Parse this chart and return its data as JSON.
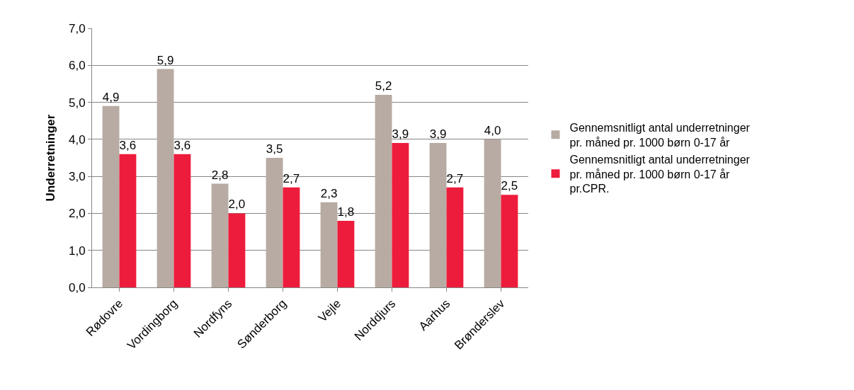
{
  "chart_data": {
    "type": "bar",
    "ylabel": "Underretninger",
    "categories": [
      "Rødovre",
      "Vordingborg",
      "Nordfyns",
      "Sønderborg",
      "Vejle",
      "Norddjurs",
      "Aarhus",
      "Brønderslev"
    ],
    "series": [
      {
        "name": "Gennemsnitligt antal underretninger pr. måned pr. 1000 børn 0-17 år",
        "color": "#b8aba3",
        "values": [
          4.9,
          5.9,
          2.8,
          3.5,
          2.3,
          5.2,
          3.9,
          4.0
        ],
        "value_labels": [
          "4,9",
          "5,9",
          "2,8",
          "3,5",
          "2,3",
          "5,2",
          "3,9",
          "4,0"
        ]
      },
      {
        "name": "Gennemsnitligt antal underretninger pr. måned pr. 1000 børn 0-17 år pr.CPR.",
        "color": "#ee1c3c",
        "values": [
          3.6,
          3.6,
          2.0,
          2.7,
          1.8,
          3.9,
          2.7,
          2.5
        ],
        "value_labels": [
          "3,6",
          "3,6",
          "2,0",
          "2,7",
          "1,8",
          "3,9",
          "2,7",
          "2,5"
        ]
      }
    ],
    "ylim": [
      0,
      7
    ],
    "yticks": [
      {
        "value": 0,
        "label": "0,0"
      },
      {
        "value": 1,
        "label": "1,0"
      },
      {
        "value": 2,
        "label": "2,0"
      },
      {
        "value": 3,
        "label": "3,0"
      },
      {
        "value": 4,
        "label": "4,0"
      },
      {
        "value": 5,
        "label": "5,0"
      },
      {
        "value": 6,
        "label": "6,0"
      },
      {
        "value": 7,
        "label": "7,0"
      }
    ],
    "grid": "y",
    "legend": "right"
  }
}
